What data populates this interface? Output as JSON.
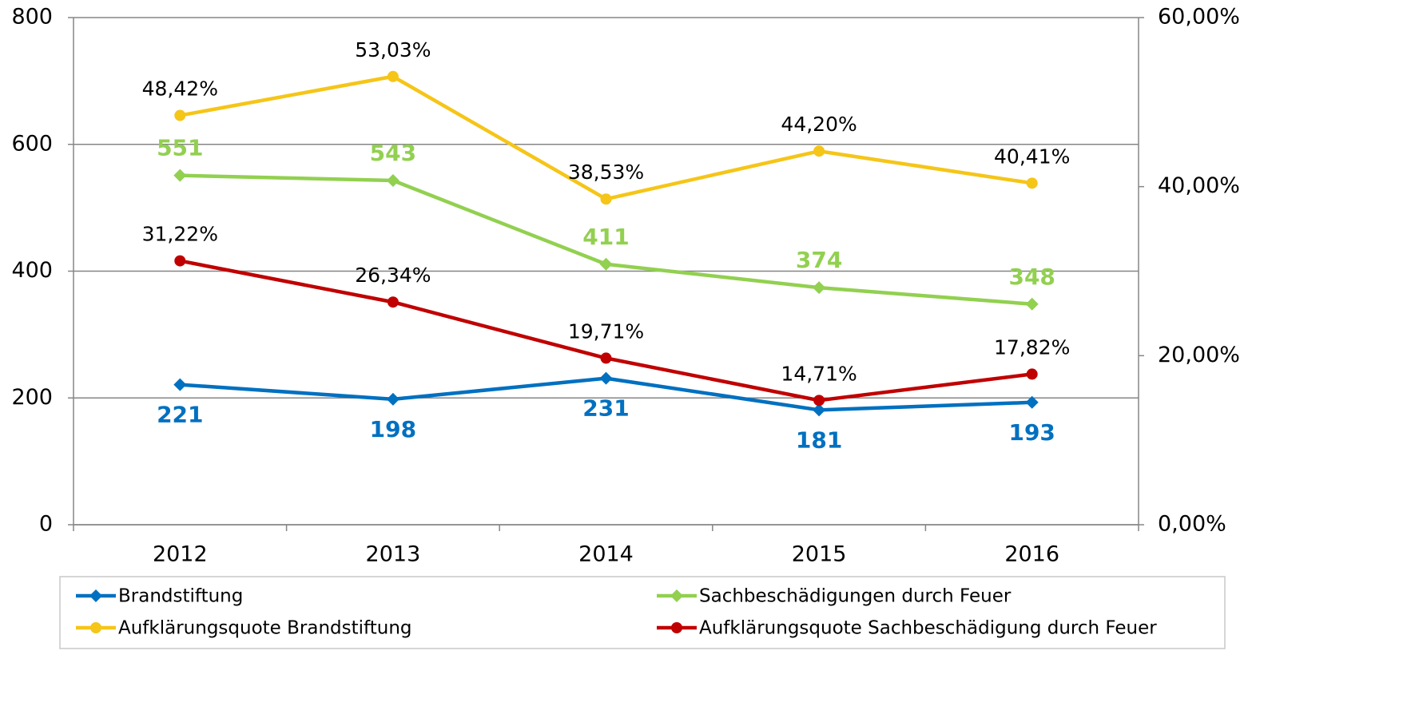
{
  "chart_data": {
    "type": "line",
    "categories": [
      "2012",
      "2013",
      "2014",
      "2015",
      "2016"
    ],
    "ylim": [
      0,
      800
    ],
    "yticks": [
      0,
      200,
      400,
      600,
      800
    ],
    "y2lim": [
      0,
      60
    ],
    "y2ticks": [
      {
        "value": 0,
        "label": "0,00%"
      },
      {
        "value": 20,
        "label": "20,00%"
      },
      {
        "value": 40,
        "label": "40,00%"
      },
      {
        "value": 60,
        "label": "60,00%"
      }
    ],
    "grid": true,
    "legend": "bottom",
    "series": [
      {
        "name": "Brandstiftung",
        "color": "#0070c0",
        "marker": "diamond",
        "values": [
          221,
          198,
          231,
          181,
          193
        ]
      },
      {
        "name": "Sachbeschädigungen durch Feuer",
        "color": "#92d050",
        "marker": "diamond",
        "values": [
          551,
          543,
          411,
          374,
          348
        ]
      },
      {
        "name": "Aufklärungsquote Brandstiftung",
        "color": "#f5c518",
        "marker": "circle",
        "axis": "y2",
        "values": [
          48.42,
          53.03,
          38.53,
          44.2,
          40.41
        ],
        "value_labels": [
          "48,42%",
          "53,03%",
          "38,53%",
          "44,20%",
          "40,41%"
        ]
      },
      {
        "name": "Aufklärungsquote Sachbeschädigung durch Feuer",
        "color": "#c00000",
        "marker": "circle",
        "axis": "y2",
        "values": [
          31.22,
          26.34,
          19.71,
          14.71,
          17.82
        ],
        "value_labels": [
          "31,22%",
          "26,34%",
          "19,71%",
          "14,71%",
          "17,82%"
        ]
      }
    ]
  }
}
